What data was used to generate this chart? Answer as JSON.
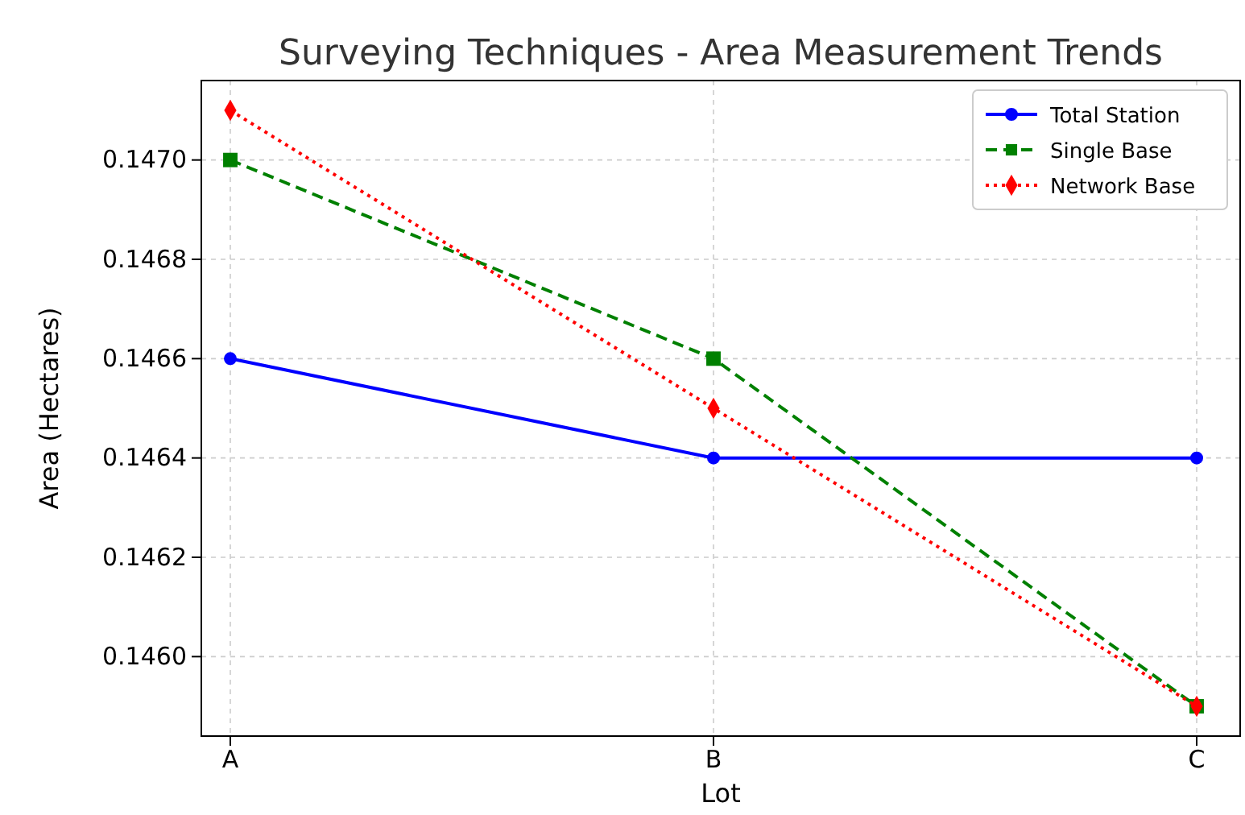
{
  "chart_data": {
    "type": "line",
    "title": "Surveying Techniques - Area Measurement Trends",
    "xlabel": "Lot",
    "ylabel": "Area (Hectares)",
    "categories": [
      "A",
      "B",
      "C"
    ],
    "series": [
      {
        "name": "Total Station",
        "color": "#0000ff",
        "values": [
          0.1466,
          0.1464,
          0.1464
        ],
        "marker": "circle",
        "line_style": "solid"
      },
      {
        "name": "Single Base",
        "color": "#008000",
        "values": [
          0.147,
          0.1466,
          0.1459
        ],
        "marker": "square",
        "line_style": "dashed"
      },
      {
        "name": "Network Base",
        "color": "#ff0000",
        "values": [
          0.1471,
          0.1465,
          0.1459
        ],
        "marker": "diamond",
        "line_style": "dotted"
      }
    ],
    "ylim": [
      0.14584,
      0.14716
    ],
    "yticks": [
      {
        "value": 0.146,
        "label": "0.1460"
      },
      {
        "value": 0.1462,
        "label": "0.1462"
      },
      {
        "value": 0.1464,
        "label": "0.1464"
      },
      {
        "value": 0.1466,
        "label": "0.1466"
      },
      {
        "value": 0.1468,
        "label": "0.1468"
      },
      {
        "value": 0.147,
        "label": "0.1470"
      }
    ],
    "grid": true,
    "legend": "top right"
  }
}
